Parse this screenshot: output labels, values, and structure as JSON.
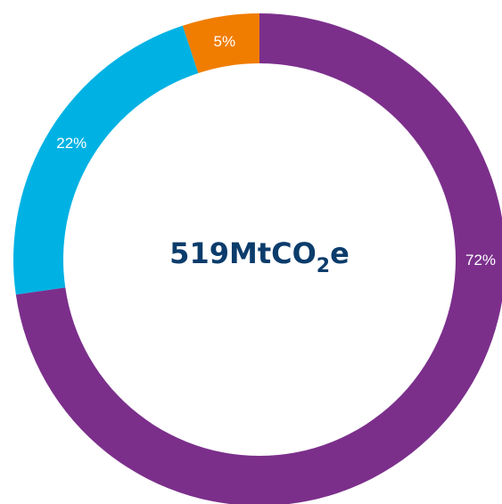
{
  "chart_data": {
    "type": "pie",
    "variant": "donut",
    "title": "",
    "center_label": {
      "value": "519",
      "unit_prefix": "MtCO",
      "unit_subscript": "2",
      "unit_suffix": "e"
    },
    "slices": [
      {
        "label": "72%",
        "value": 72,
        "color": "#7b2f8b"
      },
      {
        "label": "22%",
        "value": 22,
        "color": "#00b2e3"
      },
      {
        "label": "5%",
        "value": 5,
        "color": "#f07d00"
      }
    ],
    "start_angle_deg": 0,
    "direction": "clockwise"
  }
}
